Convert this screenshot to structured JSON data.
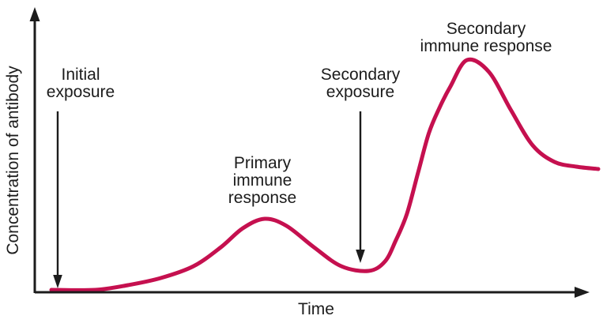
{
  "figure": {
    "kind": "annotated line graph",
    "background": "#ffffff"
  },
  "colors": {
    "curve": "#C5104F",
    "axis": "#1c1c1c",
    "text": "#1c1c1c"
  },
  "axes": {
    "x_label": "Time",
    "y_label": "Concentration of antibody"
  },
  "annotations": {
    "initial_exposure": {
      "lines": [
        "Initial",
        "exposure"
      ]
    },
    "secondary_exposure": {
      "lines": [
        "Secondary",
        "exposure"
      ]
    },
    "primary_response": {
      "lines": [
        "Primary",
        "immune",
        "response"
      ]
    },
    "secondary_response": {
      "lines": [
        "Secondary",
        "immune response"
      ]
    }
  },
  "chart_data": {
    "type": "line",
    "title": "",
    "xlabel": "Time",
    "ylabel": "Concentration of antibody",
    "x_axis": {
      "range": [
        0,
        100
      ],
      "tick_labels": "none"
    },
    "y_axis": {
      "range": [
        0,
        100
      ],
      "tick_labels": "none"
    },
    "grid": false,
    "legend": "none",
    "series": [
      {
        "name": "Antibody concentration",
        "color": "#C5104F",
        "x": [
          0,
          8,
          14,
          20,
          26,
          31,
          35,
          39,
          43,
          48,
          53,
          58,
          61,
          63,
          65,
          67,
          69,
          71,
          73,
          76,
          80,
          84,
          88,
          92,
          96,
          100
        ],
        "y": [
          1,
          1,
          3,
          6,
          11,
          19,
          27,
          31,
          28,
          19,
          11,
          9,
          13,
          22,
          33,
          50,
          67,
          78,
          87,
          98,
          93,
          77,
          62,
          55,
          53,
          52
        ]
      }
    ],
    "annotations": [
      {
        "label": "Initial exposure",
        "kind": "arrow-down",
        "x": 1,
        "arrow_tip_y": 2
      },
      {
        "label": "Primary immune response",
        "kind": "text",
        "x": 39,
        "near_y": 31
      },
      {
        "label": "Secondary exposure",
        "kind": "arrow-down",
        "x": 57,
        "arrow_tip_y": 13
      },
      {
        "label": "Secondary immune response",
        "kind": "text",
        "x": 76,
        "near_y": 98
      }
    ]
  }
}
